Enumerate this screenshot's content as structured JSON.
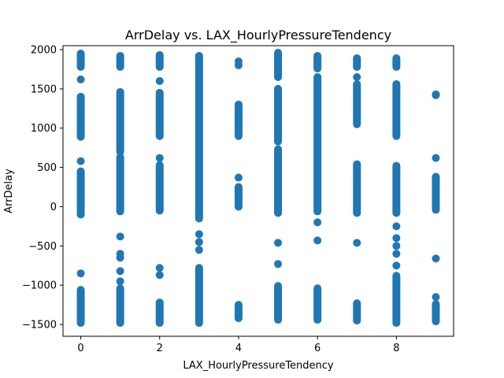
{
  "chart_data": {
    "type": "scatter",
    "title": "ArrDelay vs. LAX_HourlyPressureTendency",
    "xlabel": "LAX_HourlyPressureTendency",
    "ylabel": "ArrDelay",
    "xlim": [
      -0.45,
      9.45
    ],
    "ylim": [
      -1650,
      2050
    ],
    "xticks": [
      0,
      2,
      4,
      6,
      8
    ],
    "yticks": [
      -1500,
      -1000,
      -500,
      0,
      500,
      1000,
      1500,
      2000
    ],
    "color": "#1f77b4",
    "grid": false,
    "legend": "none",
    "columns": [
      {
        "x": 0,
        "segments": [
          [
            -1480,
            -1060
          ],
          [
            -100,
            450
          ],
          [
            890,
            1400
          ],
          [
            1780,
            1950
          ]
        ],
        "points": [
          -850,
          580,
          1620
        ]
      },
      {
        "x": 1,
        "segments": [
          [
            -1480,
            -1040
          ],
          [
            -60,
            630
          ],
          [
            700,
            1460
          ],
          [
            1780,
            1920
          ]
        ],
        "points": [
          -950,
          -820,
          -650,
          -600,
          -380,
          750
        ]
      },
      {
        "x": 2,
        "segments": [
          [
            -1480,
            -1220
          ],
          [
            -50,
            530
          ],
          [
            900,
            1450
          ],
          [
            1780,
            1930
          ]
        ],
        "points": [
          -870,
          -780,
          620,
          1600
        ]
      },
      {
        "x": 3,
        "segments": [
          [
            -1480,
            -780
          ],
          [
            -150,
            1920
          ]
        ],
        "points": [
          -550,
          -450,
          -350
        ]
      },
      {
        "x": 4,
        "segments": [
          [
            -1420,
            -1250
          ],
          [
            0,
            250
          ],
          [
            900,
            1300
          ]
        ],
        "points": [
          100,
          370,
          1800,
          1850
        ]
      },
      {
        "x": 5,
        "segments": [
          [
            -1440,
            -1010
          ],
          [
            -80,
            730
          ],
          [
            830,
            1500
          ],
          [
            1650,
            1960
          ]
        ],
        "points": [
          -730,
          -460
        ]
      },
      {
        "x": 6,
        "segments": [
          [
            -1440,
            -1040
          ],
          [
            -60,
            1650
          ],
          [
            1760,
            1920
          ]
        ],
        "points": [
          -430,
          -200
        ]
      },
      {
        "x": 7,
        "segments": [
          [
            -1450,
            -1230
          ],
          [
            -80,
            540
          ],
          [
            1050,
            1560
          ],
          [
            1780,
            1890
          ]
        ],
        "points": [
          -460,
          1650
        ]
      },
      {
        "x": 8,
        "segments": [
          [
            -1480,
            -880
          ],
          [
            -80,
            520
          ],
          [
            900,
            1560
          ],
          [
            1780,
            1890
          ]
        ],
        "points": [
          -750,
          -600,
          -500,
          -400,
          -250
        ]
      },
      {
        "x": 9,
        "segments": [
          [
            -1460,
            -1240
          ],
          [
            -40,
            380
          ]
        ],
        "points": [
          -1150,
          -660,
          620,
          1420,
          1430
        ]
      }
    ]
  }
}
